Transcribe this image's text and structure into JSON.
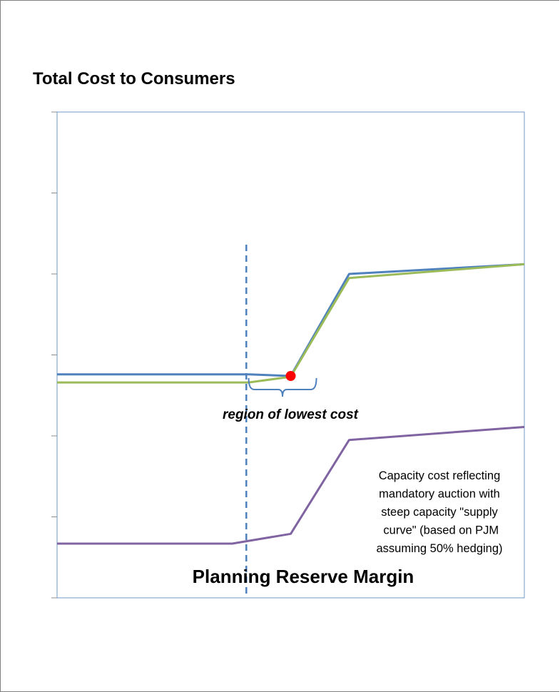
{
  "chart_data": {
    "type": "line",
    "title": "Total Cost to Consumers",
    "xlabel": "Planning Reserve Margin",
    "ylabel": "",
    "xlim": [
      0,
      100
    ],
    "ylim": [
      0,
      6
    ],
    "y_ticks": [
      0,
      1,
      2,
      3,
      4,
      5,
      6
    ],
    "tick_labels_shown": false,
    "grid": false,
    "legend": "none",
    "series": [
      {
        "color": "#4f81bd",
        "x": [
          0,
          41,
          50,
          62.5,
          100
        ],
        "y": [
          2.76,
          2.76,
          2.74,
          4.0,
          4.12
        ]
      },
      {
        "color": "#9bbb59",
        "x": [
          0,
          41,
          50,
          62.5,
          100
        ],
        "y": [
          2.66,
          2.66,
          2.73,
          3.95,
          4.12
        ]
      },
      {
        "color": "#8064a2",
        "x": [
          0,
          37.5,
          50,
          62.5,
          100
        ],
        "y": [
          0.67,
          0.67,
          0.79,
          1.95,
          2.11
        ]
      }
    ],
    "marker": {
      "x": 50,
      "y": 2.74,
      "color": "#ff0000"
    },
    "vertical_reference": {
      "x": 40.5,
      "style": "dashed",
      "color": "#4f81bd"
    },
    "bracket": {
      "x_start": 41,
      "x_end": 55.5
    },
    "annotations": {
      "region_label": "region of lowest cost",
      "capacity_note": [
        "Capacity cost reflecting",
        "mandatory auction with",
        "steep capacity \"supply",
        " curve\" (based on PJM",
        "assuming 50% hedging)"
      ]
    }
  }
}
